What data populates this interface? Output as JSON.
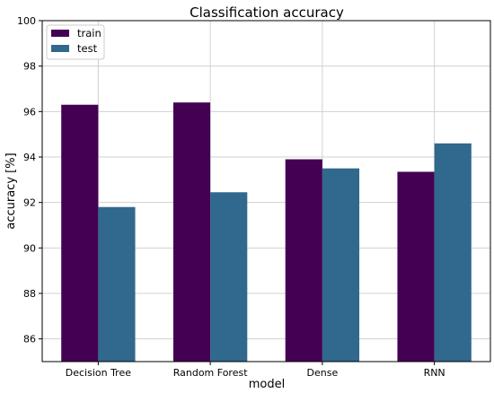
{
  "chart_data": {
    "type": "bar",
    "title": "Classification accuracy",
    "xlabel": "model",
    "ylabel": "accuracy [%]",
    "categories": [
      "Decision Tree",
      "Random Forest",
      "Dense",
      "RNN"
    ],
    "series": [
      {
        "name": "train",
        "color": "#440154",
        "values": [
          96.3,
          96.4,
          93.9,
          93.35
        ]
      },
      {
        "name": "test",
        "color": "#31688e",
        "values": [
          91.8,
          92.45,
          93.5,
          94.6
        ]
      }
    ],
    "ylim": [
      85,
      100
    ],
    "yticks": [
      86,
      88,
      90,
      92,
      94,
      96,
      98,
      100
    ],
    "grid": true,
    "legend_position": "top-left"
  }
}
